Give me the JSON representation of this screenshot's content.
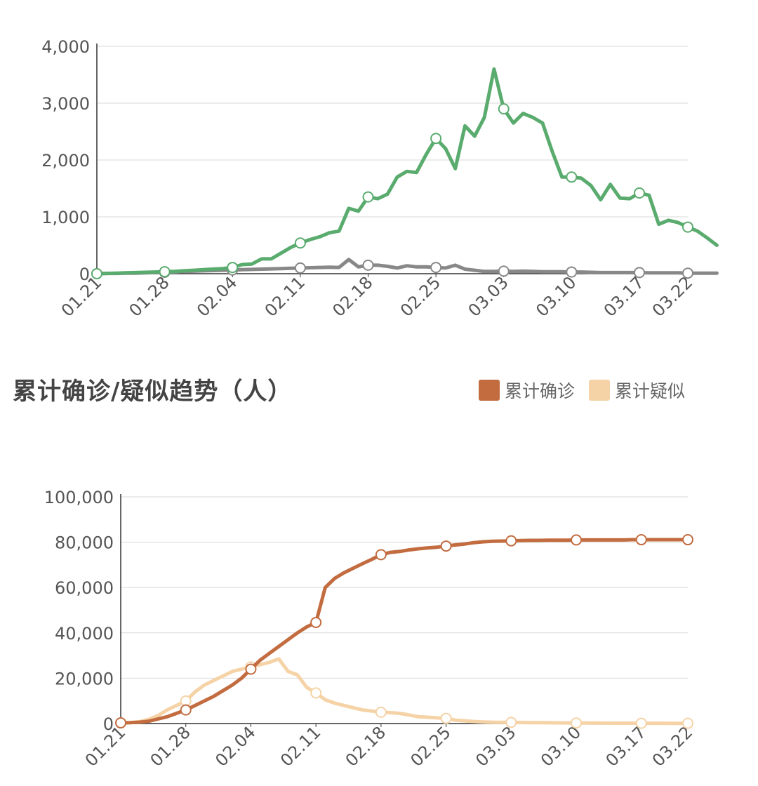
{
  "section_title": "累计确诊/疑似趋势（人）",
  "chart_data": [
    {
      "type": "line",
      "title": "",
      "xlabel": "",
      "ylabel": "",
      "ylim": [
        0,
        4000
      ],
      "yticks": [
        0,
        1000,
        2000,
        3000,
        4000
      ],
      "ytick_labels": [
        "0",
        "1,000",
        "2,000",
        "3,000",
        "4,000"
      ],
      "x_start_date": "2020-01-21",
      "x_tick_labels": [
        "01.21",
        "01.28",
        "02.04",
        "02.11",
        "02.18",
        "02.25",
        "03.03",
        "03.10",
        "03.17",
        "03.22"
      ],
      "grid": true,
      "legend": "none",
      "series": [
        {
          "color": "#5aab6e",
          "values": [
            0,
            5,
            10,
            15,
            20,
            25,
            30,
            35,
            40,
            50,
            60,
            70,
            80,
            90,
            110,
            160,
            170,
            260,
            260,
            360,
            460,
            540,
            600,
            650,
            720,
            750,
            1150,
            1100,
            1350,
            1320,
            1400,
            1700,
            1800,
            1780,
            2100,
            2380,
            2200,
            1850,
            2600,
            2420,
            2750,
            3600,
            2900,
            2650,
            2820,
            2750,
            2650,
            2150,
            1700,
            1700,
            1680,
            1550,
            1300,
            1570,
            1330,
            1320,
            1420,
            1380,
            870,
            940,
            900,
            820,
            750,
            630,
            500
          ]
        },
        {
          "color": "#888888",
          "values": [
            0,
            5,
            5,
            10,
            10,
            15,
            20,
            25,
            30,
            40,
            45,
            50,
            55,
            60,
            65,
            70,
            75,
            80,
            85,
            90,
            95,
            100,
            105,
            110,
            115,
            110,
            250,
            120,
            150,
            150,
            130,
            100,
            140,
            120,
            120,
            110,
            100,
            150,
            80,
            60,
            40,
            40,
            45,
            40,
            45,
            40,
            35,
            35,
            35,
            30,
            30,
            25,
            20,
            20,
            20,
            20,
            20,
            15,
            15,
            15,
            15,
            10,
            10,
            10,
            10
          ]
        }
      ]
    },
    {
      "type": "line",
      "title": "",
      "xlabel": "",
      "ylabel": "",
      "ylim": [
        0,
        100000
      ],
      "yticks": [
        0,
        20000,
        40000,
        60000,
        80000,
        100000
      ],
      "ytick_labels": [
        "0",
        "20,000",
        "40,000",
        "60,000",
        "80,000",
        "100,000"
      ],
      "x_start_date": "2020-01-21",
      "x_tick_labels": [
        "01.21",
        "01.28",
        "02.04",
        "02.11",
        "02.18",
        "02.25",
        "03.03",
        "03.10",
        "03.17",
        "03.22"
      ],
      "grid": true,
      "legend": "top-right",
      "series": [
        {
          "name": "累计确诊",
          "color": "#c26c40",
          "values": [
            300,
            400,
            600,
            1000,
            2000,
            3000,
            4500,
            6000,
            8000,
            10000,
            12000,
            14500,
            17000,
            20000,
            24000,
            28000,
            31000,
            34000,
            37000,
            40000,
            42600,
            44600,
            60000,
            64000,
            66500,
            68500,
            70500,
            72400,
            74500,
            75500,
            75900,
            76600,
            77100,
            77500,
            77800,
            78300,
            78800,
            79200,
            79800,
            80200,
            80400,
            80500,
            80600,
            80700,
            80800,
            80800,
            80900,
            80900,
            80900,
            81000,
            81000,
            81000,
            81000,
            81000,
            81000,
            81100,
            81100,
            81100,
            81100,
            81100,
            81100,
            81100
          ]
        },
        {
          "name": "累计疑似",
          "color": "#f5d3a7",
          "values": [
            300,
            400,
            800,
            1800,
            3500,
            6000,
            8000,
            10000,
            14000,
            17000,
            19000,
            21000,
            23000,
            24000,
            25000,
            26000,
            27000,
            28500,
            23000,
            21500,
            16000,
            13500,
            10500,
            9000,
            8000,
            7000,
            6000,
            5500,
            5000,
            4800,
            4500,
            3800,
            3000,
            2800,
            2500,
            2300,
            1500,
            1200,
            900,
            700,
            600,
            550,
            500,
            450,
            400,
            380,
            350,
            300,
            280,
            250,
            230,
            200,
            180,
            160,
            150,
            140,
            130,
            120,
            110,
            100,
            100,
            100
          ]
        }
      ]
    }
  ]
}
